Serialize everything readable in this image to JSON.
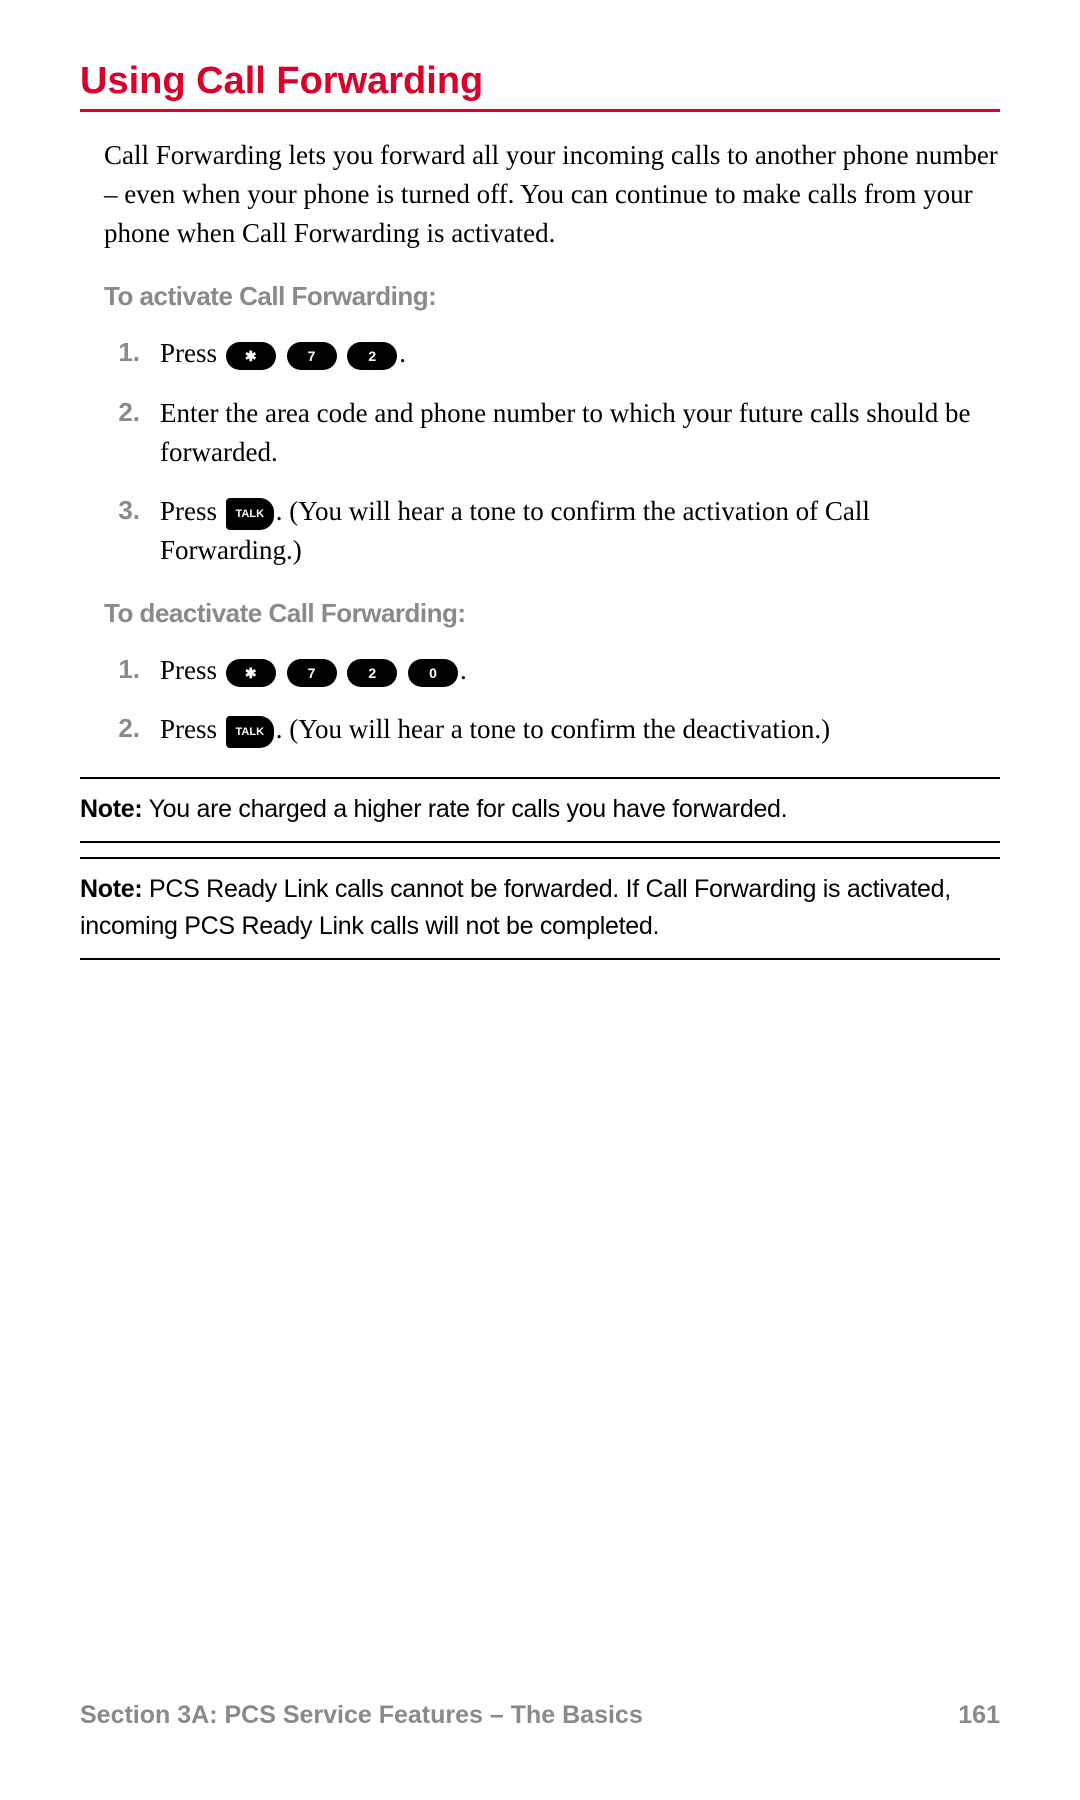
{
  "heading": "Using Call Forwarding",
  "intro": "Call Forwarding lets you forward all your incoming calls to another phone number – even when your phone is turned off. You can continue to make calls from your phone when Call Forwarding is activated.",
  "activate": {
    "subhead": "To activate Call Forwarding:",
    "steps": [
      {
        "pre": "Press ",
        "keys": [
          "✱",
          "7",
          "2"
        ],
        "post": "."
      },
      {
        "text": "Enter the area code and phone number to which your future calls should be forwarded."
      },
      {
        "pre": "Press ",
        "talk": "TALK",
        "post": ". (You will hear a tone to confirm the activation of Call Forwarding.)"
      }
    ]
  },
  "deactivate": {
    "subhead": "To deactivate Call Forwarding:",
    "steps": [
      {
        "pre": "Press ",
        "keys": [
          "✱",
          "7",
          "2",
          "0"
        ],
        "post": "."
      },
      {
        "pre": "Press ",
        "talk": "TALK",
        "post": ". (You will hear a tone to confirm the deactivation.)"
      }
    ]
  },
  "notes": [
    {
      "label": "Note:",
      "text": " You are charged a higher rate for calls you have forwarded."
    },
    {
      "label": "Note:",
      "text": " PCS Ready Link calls cannot be forwarded. If Call Forwarding is activated, incoming PCS Ready Link calls will not be completed."
    }
  ],
  "footer": {
    "section": "Section 3A: PCS Service Features – The Basics",
    "page": "161"
  },
  "nums": [
    "1.",
    "2.",
    "3."
  ]
}
